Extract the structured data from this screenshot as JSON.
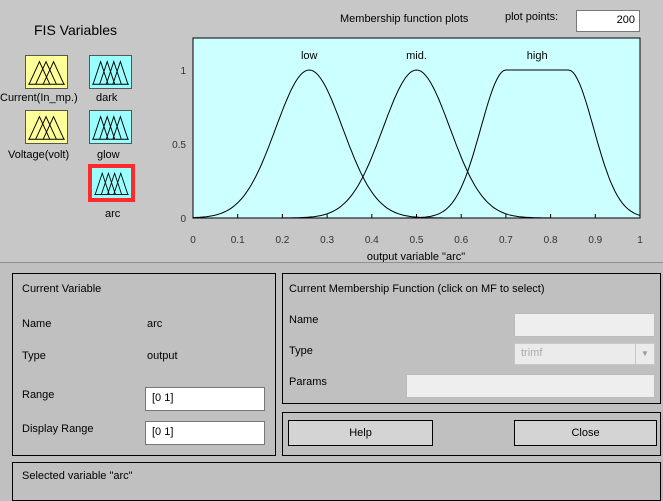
{
  "fis_variables": {
    "title": "FIS Variables",
    "inputs": [
      {
        "label": "Current(In_mp.)"
      },
      {
        "label": "Voltage(volt)"
      }
    ],
    "outputs": [
      {
        "label": "dark"
      },
      {
        "label": "glow"
      },
      {
        "label": "arc"
      }
    ],
    "selected": "arc",
    "colors": {
      "input": "#ffff99",
      "output": "#99ffff",
      "selected_border": "#ff2a2a"
    }
  },
  "plot": {
    "title": "Membership function plots",
    "plot_points_label": "plot points:",
    "plot_points_value": "200",
    "xlabel": "output variable \"arc\"",
    "background": "#ccffff",
    "x_ticks": [
      "0",
      "0.1",
      "0.2",
      "0.3",
      "0.4",
      "0.5",
      "0.6",
      "0.7",
      "0.8",
      "0.9",
      "1"
    ],
    "y_ticks": [
      "0",
      "0.5",
      "1"
    ],
    "mfs": [
      {
        "name": "low",
        "peak": 0.26
      },
      {
        "name": "mid.",
        "peak": 0.5
      },
      {
        "name": "high",
        "peak_range": [
          0.7,
          0.84
        ]
      }
    ]
  },
  "current_variable": {
    "title": "Current Variable",
    "name_label": "Name",
    "name_value": "arc",
    "type_label": "Type",
    "type_value": "output",
    "range_label": "Range",
    "range_value": "[0 1]",
    "display_range_label": "Display Range",
    "display_range_value": "[0 1]"
  },
  "current_mf": {
    "title": "Current Membership Function (click on MF to select)",
    "name_label": "Name",
    "name_value": "",
    "type_label": "Type",
    "type_value": "trimf",
    "params_label": "Params",
    "params_value": ""
  },
  "buttons": {
    "help": "Help",
    "close": "Close"
  },
  "status": {
    "message": "Selected variable \"arc\""
  }
}
